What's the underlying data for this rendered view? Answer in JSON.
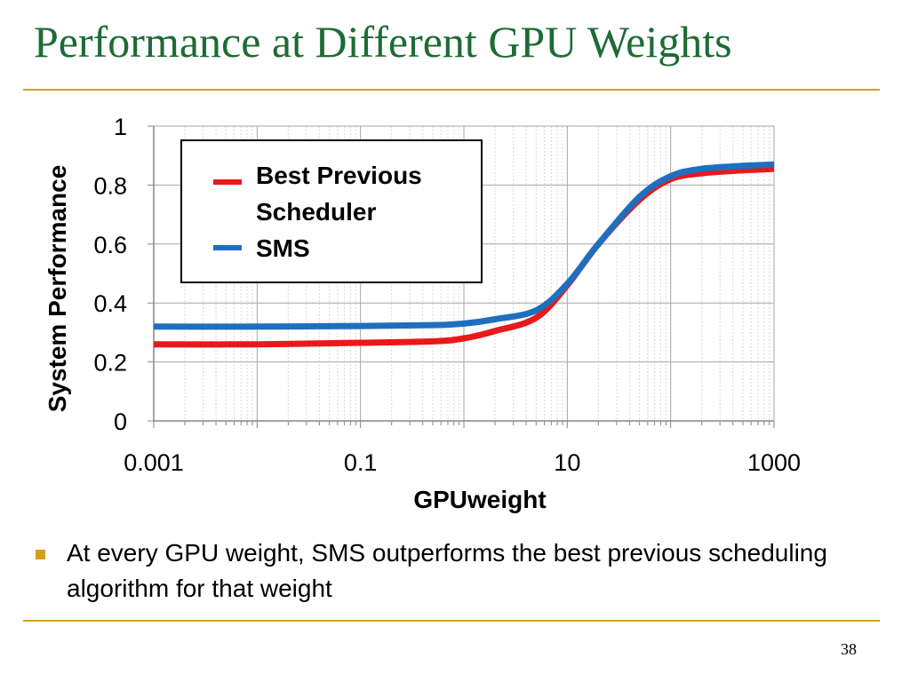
{
  "slide": {
    "title": "Performance at Different GPU Weights",
    "bullet": "At every GPU weight, SMS outperforms the best previous scheduling algorithm for that weight",
    "page_number": "38",
    "title_color": "#1e6b35",
    "rule_color": "#d4a017",
    "bullet_color": "#d4a017"
  },
  "chart_data": {
    "type": "line",
    "title": "",
    "xlabel": "GPUweight",
    "ylabel": "System Performance",
    "xscale": "log",
    "xlim": [
      0.001,
      1000
    ],
    "ylim": [
      0,
      1
    ],
    "xticks": [
      0.001,
      0.1,
      10,
      1000
    ],
    "xtick_labels": [
      "0.001",
      "0.1",
      "10",
      "1000"
    ],
    "yticks": [
      0,
      0.2,
      0.4,
      0.6,
      0.8,
      1
    ],
    "ytick_labels": [
      "0",
      "0.2",
      "0.4",
      "0.6",
      "0.8",
      "1"
    ],
    "grid": true,
    "legend_position": "top-left inside plot",
    "x": [
      0.001,
      0.01,
      0.1,
      0.5,
      1,
      2,
      5,
      10,
      20,
      50,
      100,
      200,
      500,
      1000
    ],
    "series": [
      {
        "name": "Best Previous Scheduler",
        "color": "#e8191b",
        "values": [
          0.26,
          0.26,
          0.265,
          0.27,
          0.28,
          0.305,
          0.35,
          0.46,
          0.6,
          0.75,
          0.82,
          0.84,
          0.85,
          0.855
        ]
      },
      {
        "name": "SMS",
        "color": "#1f6fbf",
        "values": [
          0.32,
          0.32,
          0.322,
          0.325,
          0.33,
          0.345,
          0.375,
          0.465,
          0.6,
          0.76,
          0.83,
          0.855,
          0.865,
          0.87
        ]
      }
    ]
  }
}
